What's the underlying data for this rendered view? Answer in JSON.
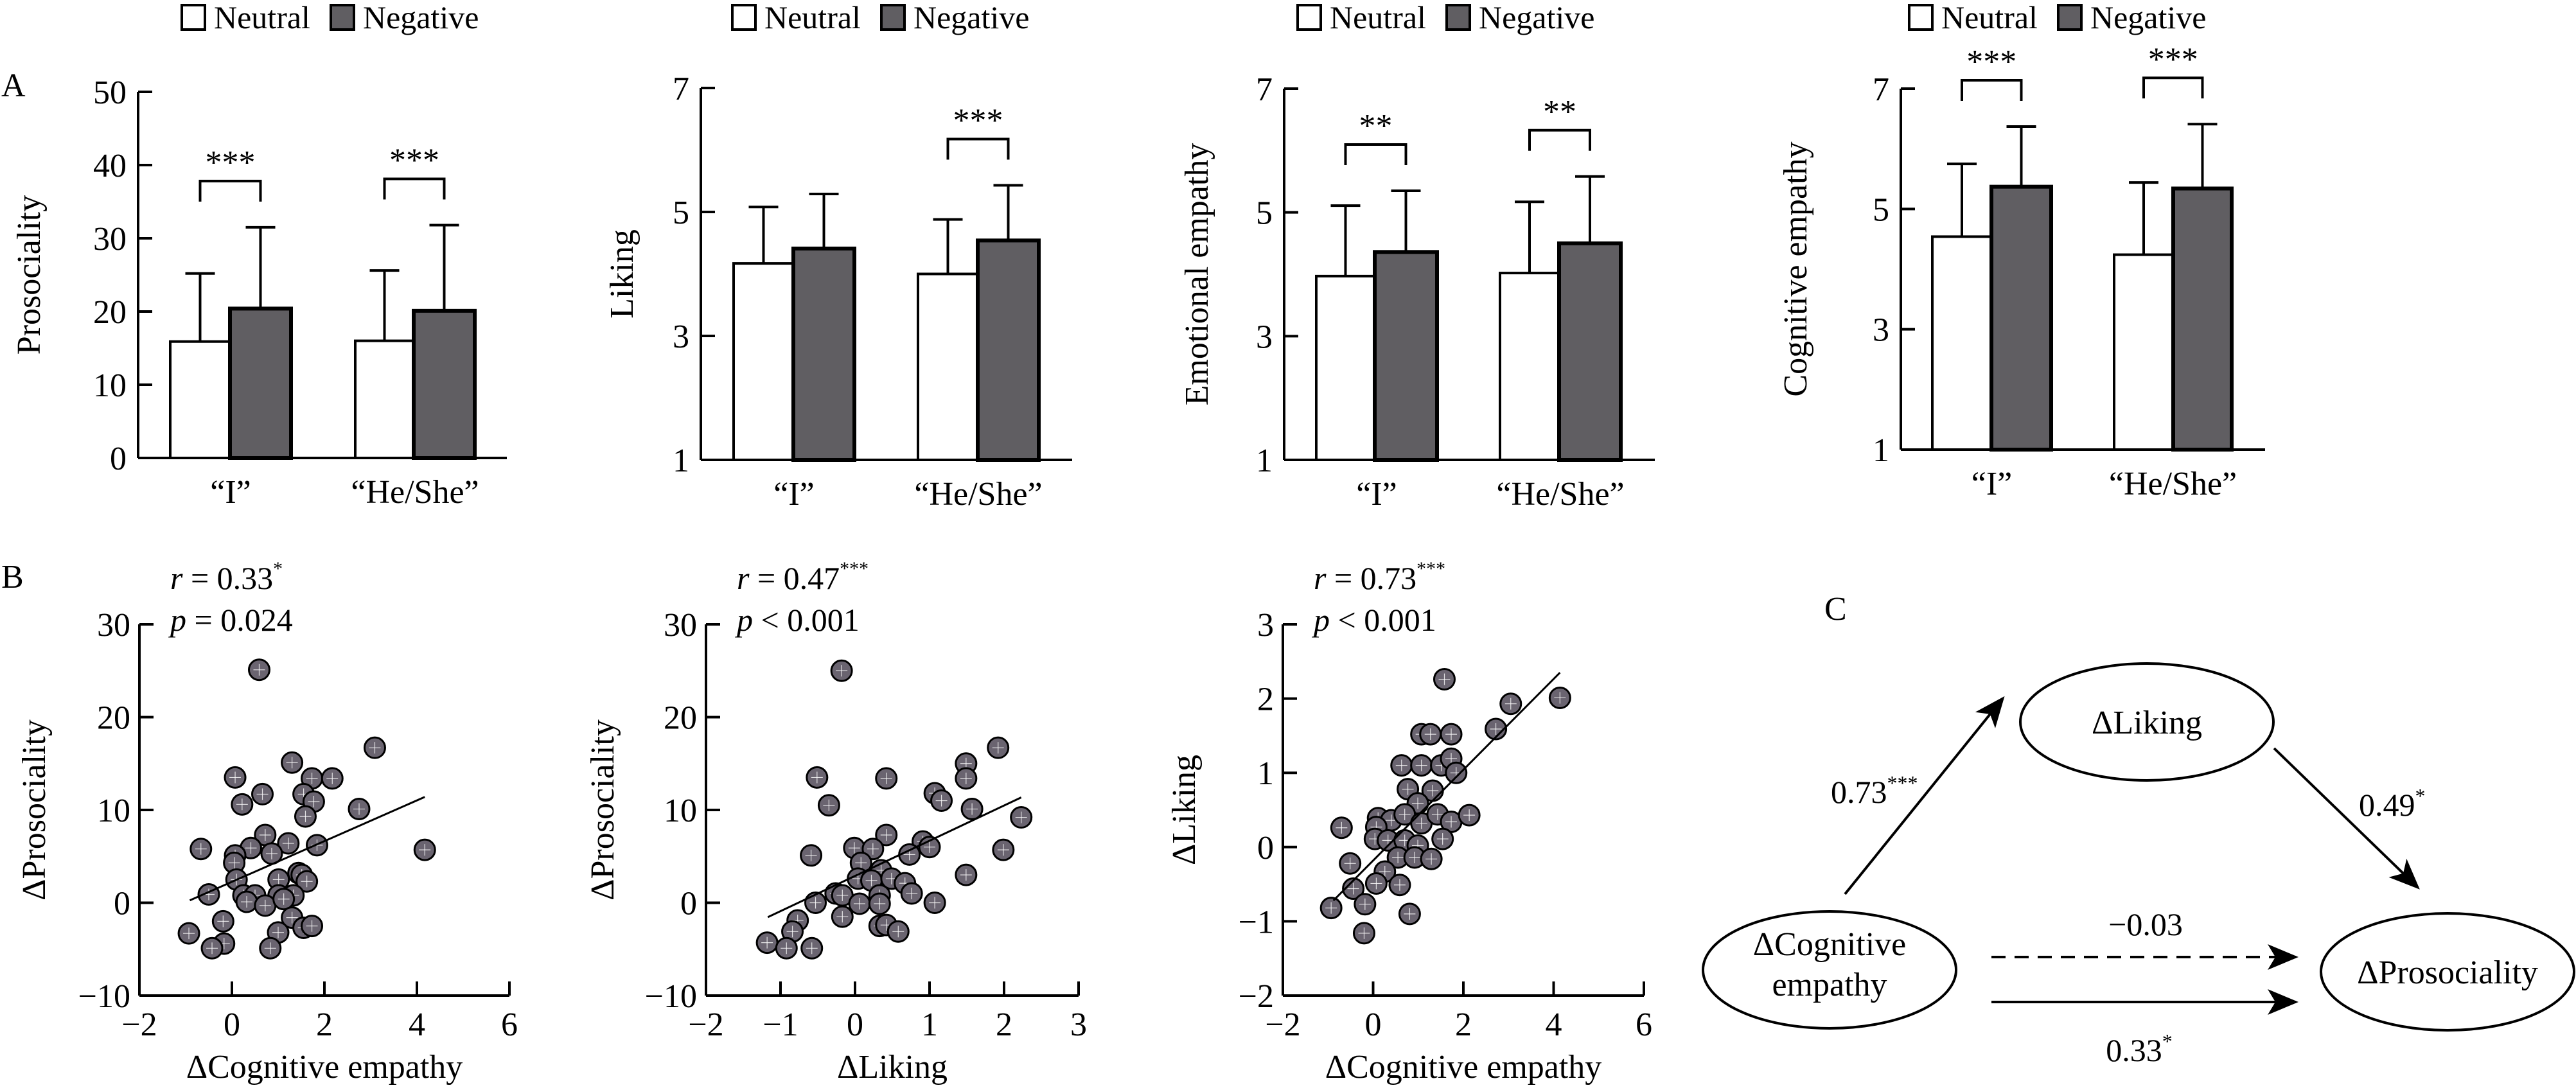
{
  "figure": {
    "panel_labels": {
      "A": "A",
      "B": "B",
      "C": "C"
    },
    "colors": {
      "neutral": "#ffffff",
      "negative": "#605e62",
      "stroke": "#000000",
      "dot_fill": "#6a6470"
    }
  },
  "legend": {
    "neutral": "Neutral",
    "negative": "Negative"
  },
  "chart_data": [
    {
      "id": "prosociality",
      "type": "bar",
      "title": "",
      "ylabel": "Prosociality",
      "xlabel": "",
      "categories": [
        "“I”",
        "“He/She”"
      ],
      "ylim": [
        0,
        50
      ],
      "yticks": [
        0,
        10,
        20,
        30,
        40,
        50
      ],
      "series": [
        {
          "name": "Neutral",
          "values": [
            15.9,
            16.0
          ],
          "error_upper": [
            25.2,
            25.6
          ]
        },
        {
          "name": "Negative",
          "values": [
            20.4,
            20.1
          ],
          "error_upper": [
            31.5,
            31.8
          ]
        }
      ],
      "significance": [
        "***",
        "***"
      ],
      "legend_position": "top"
    },
    {
      "id": "liking",
      "type": "bar",
      "ylabel": "Liking",
      "xlabel": "",
      "categories": [
        "“I”",
        "“He/She”"
      ],
      "ylim": [
        1,
        7
      ],
      "yticks": [
        1,
        3,
        5,
        7
      ],
      "series": [
        {
          "name": "Neutral",
          "values": [
            4.17,
            4.0
          ],
          "error_upper": [
            5.08,
            4.88
          ]
        },
        {
          "name": "Negative",
          "values": [
            4.41,
            4.54
          ],
          "error_upper": [
            5.29,
            5.43
          ]
        }
      ],
      "significance": [
        "",
        "***"
      ],
      "legend_position": "top"
    },
    {
      "id": "emotional-empathy",
      "type": "bar",
      "ylabel": "Emotional empathy",
      "xlabel": "",
      "categories": [
        "“I”",
        "“He/She”"
      ],
      "ylim": [
        1,
        7
      ],
      "yticks": [
        1,
        3,
        5,
        7
      ],
      "series": [
        {
          "name": "Neutral",
          "values": [
            3.97,
            4.02
          ],
          "error_upper": [
            5.11,
            5.17
          ]
        },
        {
          "name": "Negative",
          "values": [
            4.36,
            4.5
          ],
          "error_upper": [
            5.35,
            5.58
          ]
        }
      ],
      "significance": [
        "**",
        "**"
      ],
      "legend_position": "top"
    },
    {
      "id": "cognitive-empathy",
      "type": "bar",
      "ylabel": "Cognitive empathy",
      "xlabel": "",
      "categories": [
        "“I”",
        "“He/She”"
      ],
      "ylim": [
        1,
        7
      ],
      "yticks": [
        1,
        3,
        5,
        7
      ],
      "series": [
        {
          "name": "Neutral",
          "values": [
            4.54,
            4.24
          ],
          "error_upper": [
            5.75,
            5.44
          ]
        },
        {
          "name": "Negative",
          "values": [
            5.37,
            5.34
          ],
          "error_upper": [
            6.37,
            6.41
          ]
        }
      ],
      "significance": [
        "***",
        "***"
      ],
      "legend_position": "top"
    },
    {
      "id": "scatter-cog-pros",
      "type": "scatter",
      "xlabel": "ΔCognitive empathy",
      "ylabel": "ΔProsociality",
      "xlim": [
        -2,
        6
      ],
      "ylim": [
        -10,
        30
      ],
      "xticks": [
        -2,
        0,
        2,
        4,
        6
      ],
      "yticks": [
        -10,
        0,
        10,
        20,
        30
      ],
      "xtick_labels": [
        "−2",
        "0",
        "2",
        "4",
        "6"
      ],
      "ytick_labels": [
        "−10",
        "0",
        "10",
        "20",
        "30"
      ],
      "stat_r": {
        "prefix": "r",
        "eq": " = 0.33",
        "sig": "*"
      },
      "stat_p": {
        "prefix": "p",
        "eq": " = 0.024"
      },
      "fit_line": [
        [
          -0.91,
          0.26
        ],
        [
          4.17,
          11.4
        ]
      ],
      "points": [
        [
          0.59,
          25.1
        ],
        [
          3.09,
          16.7
        ],
        [
          1.3,
          15.1
        ],
        [
          0.07,
          13.5
        ],
        [
          1.73,
          13.4
        ],
        [
          2.17,
          13.4
        ],
        [
          0.66,
          11.7
        ],
        [
          1.55,
          11.7
        ],
        [
          1.77,
          10.9
        ],
        [
          0.22,
          10.6
        ],
        [
          2.75,
          10.1
        ],
        [
          1.59,
          9.3
        ],
        [
          0.72,
          7.3
        ],
        [
          -0.67,
          5.8
        ],
        [
          0.41,
          5.9
        ],
        [
          1.22,
          6.4
        ],
        [
          1.84,
          6.2
        ],
        [
          4.17,
          5.7
        ],
        [
          0.07,
          5.1
        ],
        [
          0.86,
          5.3
        ],
        [
          0.05,
          4.3
        ],
        [
          1.44,
          3.2
        ],
        [
          1.51,
          3.0
        ],
        [
          1.01,
          2.5
        ],
        [
          0.1,
          2.5
        ],
        [
          1.62,
          2.3
        ],
        [
          -0.5,
          0.9
        ],
        [
          0.25,
          0.8
        ],
        [
          0.5,
          0.8
        ],
        [
          1.01,
          0.8
        ],
        [
          1.33,
          0.8
        ],
        [
          0.32,
          0.1
        ],
        [
          0.72,
          -0.3
        ],
        [
          1.12,
          0.4
        ],
        [
          1.3,
          -1.6
        ],
        [
          -0.19,
          -2.0
        ],
        [
          1.55,
          -2.7
        ],
        [
          1.73,
          -2.5
        ],
        [
          -0.93,
          -3.3
        ],
        [
          1.0,
          -3.2
        ],
        [
          -0.17,
          -4.4
        ],
        [
          -0.43,
          -4.9
        ],
        [
          0.83,
          -4.9
        ]
      ]
    },
    {
      "id": "scatter-liking-pros",
      "type": "scatter",
      "xlabel": "ΔLiking",
      "ylabel": "ΔProsociality",
      "xlim": [
        -2,
        3
      ],
      "ylim": [
        -10,
        30
      ],
      "xticks": [
        -2,
        -1,
        0,
        1,
        2,
        3
      ],
      "yticks": [
        -10,
        0,
        10,
        20,
        30
      ],
      "xtick_labels": [
        "−2",
        "−1",
        "0",
        "1",
        "2",
        "3"
      ],
      "ytick_labels": [
        "−10",
        "0",
        "10",
        "20",
        "30"
      ],
      "stat_r": {
        "prefix": "r",
        "eq": " = 0.47",
        "sig": "***"
      },
      "stat_p": {
        "prefix": "p",
        "eq": " < 0.001"
      },
      "fit_line": [
        [
          -1.17,
          -1.55
        ],
        [
          2.23,
          11.35
        ]
      ],
      "points": [
        [
          -0.18,
          25.0
        ],
        [
          1.92,
          16.7
        ],
        [
          1.49,
          15.0
        ],
        [
          1.49,
          13.4
        ],
        [
          -0.51,
          13.5
        ],
        [
          0.42,
          13.4
        ],
        [
          1.07,
          11.8
        ],
        [
          1.16,
          11.0
        ],
        [
          -0.35,
          10.5
        ],
        [
          1.57,
          10.1
        ],
        [
          2.23,
          9.2
        ],
        [
          0.42,
          7.3
        ],
        [
          -0.01,
          5.9
        ],
        [
          0.24,
          5.8
        ],
        [
          0.91,
          6.6
        ],
        [
          1.0,
          6.0
        ],
        [
          1.99,
          5.7
        ],
        [
          -0.59,
          5.1
        ],
        [
          0.73,
          5.2
        ],
        [
          0.08,
          4.3
        ],
        [
          0.35,
          3.5
        ],
        [
          1.49,
          3.0
        ],
        [
          0.04,
          2.6
        ],
        [
          0.22,
          2.4
        ],
        [
          0.49,
          2.6
        ],
        [
          0.67,
          2.1
        ],
        [
          -0.26,
          1.0
        ],
        [
          -0.17,
          0.8
        ],
        [
          0.33,
          0.8
        ],
        [
          0.76,
          1.0
        ],
        [
          -0.53,
          0.0
        ],
        [
          0.06,
          -0.1
        ],
        [
          0.33,
          -0.1
        ],
        [
          1.07,
          0.0
        ],
        [
          -0.77,
          -1.9
        ],
        [
          -0.17,
          -1.5
        ],
        [
          -0.84,
          -3.1
        ],
        [
          0.33,
          -2.5
        ],
        [
          0.42,
          -2.4
        ],
        [
          0.58,
          -3.1
        ],
        [
          -1.18,
          -4.3
        ],
        [
          -0.92,
          -4.9
        ],
        [
          -0.58,
          -4.9
        ]
      ]
    },
    {
      "id": "scatter-cog-liking",
      "type": "scatter",
      "xlabel": "ΔCognitive empathy",
      "ylabel": "ΔLiking",
      "xlim": [
        -2,
        6
      ],
      "ylim": [
        -2,
        3
      ],
      "xticks": [
        -2,
        0,
        2,
        4,
        6
      ],
      "yticks": [
        -2,
        -1,
        0,
        1,
        2,
        3
      ],
      "xtick_labels": [
        "−2",
        "0",
        "2",
        "4",
        "6"
      ],
      "ytick_labels": [
        "−2",
        "−1",
        "0",
        "1",
        "2",
        "3"
      ],
      "stat_r": {
        "prefix": "r",
        "eq": " = 0.73",
        "sig": "***"
      },
      "stat_p": {
        "prefix": "p",
        "eq": " < 0.001"
      },
      "fit_line": [
        [
          -0.88,
          -0.72
        ],
        [
          4.14,
          2.35
        ]
      ],
      "points": [
        [
          1.58,
          2.26
        ],
        [
          4.14,
          2.01
        ],
        [
          3.05,
          1.93
        ],
        [
          2.72,
          1.59
        ],
        [
          1.07,
          1.52
        ],
        [
          1.27,
          1.52
        ],
        [
          1.73,
          1.52
        ],
        [
          0.63,
          1.1
        ],
        [
          1.07,
          1.1
        ],
        [
          1.51,
          1.1
        ],
        [
          1.73,
          1.19
        ],
        [
          1.84,
          1.0
        ],
        [
          0.77,
          0.78
        ],
        [
          1.32,
          0.76
        ],
        [
          0.99,
          0.59
        ],
        [
          -0.7,
          0.26
        ],
        [
          0.11,
          0.39
        ],
        [
          0.4,
          0.36
        ],
        [
          0.7,
          0.44
        ],
        [
          1.07,
          0.32
        ],
        [
          1.43,
          0.44
        ],
        [
          1.73,
          0.34
        ],
        [
          2.13,
          0.43
        ],
        [
          0.07,
          0.27
        ],
        [
          0.04,
          0.11
        ],
        [
          0.33,
          0.09
        ],
        [
          0.7,
          0.09
        ],
        [
          0.99,
          0.02
        ],
        [
          1.54,
          0.11
        ],
        [
          -0.51,
          -0.22
        ],
        [
          0.55,
          -0.14
        ],
        [
          0.92,
          -0.14
        ],
        [
          1.29,
          -0.16
        ],
        [
          0.26,
          -0.33
        ],
        [
          -0.44,
          -0.56
        ],
        [
          0.07,
          -0.49
        ],
        [
          0.59,
          -0.51
        ],
        [
          -0.93,
          -0.82
        ],
        [
          -0.18,
          -0.77
        ],
        [
          0.81,
          -0.9
        ],
        [
          -0.2,
          -1.16
        ]
      ]
    }
  ],
  "mediation": {
    "nodes": {
      "liking": "ΔLiking",
      "cognitive_line1": "ΔCognitive",
      "cognitive_line2": "empathy",
      "prosociality": "ΔProsociality"
    },
    "paths": {
      "a": {
        "value": "0.73",
        "sig": "***"
      },
      "b": {
        "value": "0.49",
        "sig": "*"
      },
      "c_prime": {
        "value": "−0.03",
        "sig": ""
      },
      "c": {
        "value": "0.33",
        "sig": "*"
      }
    }
  }
}
